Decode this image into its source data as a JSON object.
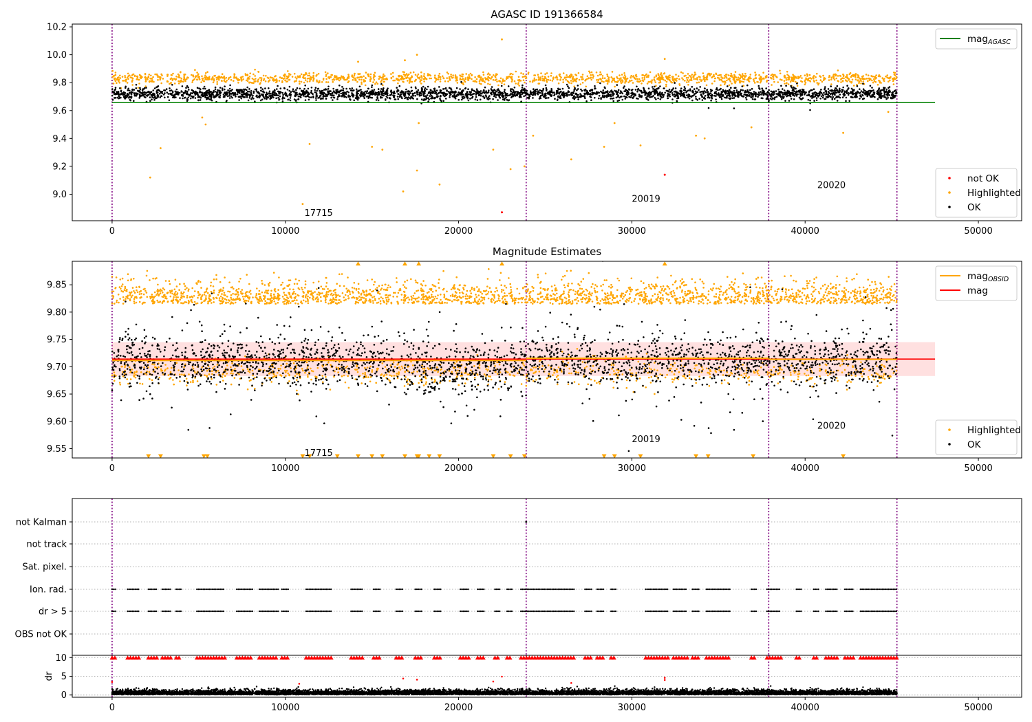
{
  "chart_data": [
    {
      "type": "scatter",
      "title": "AGASC ID 191366584",
      "xlabel": "",
      "ylabel": "",
      "xlim": [
        -2300,
        52500
      ],
      "ylim": [
        8.81,
        10.22
      ],
      "x_ticks": [
        0,
        10000,
        20000,
        30000,
        40000,
        50000
      ],
      "y_ticks": [
        9.0,
        9.2,
        9.4,
        9.6,
        9.8,
        10.0,
        10.2
      ],
      "y_tick_labels": [
        "9.0",
        "9.2",
        "9.4",
        "9.6",
        "9.8",
        "10.0",
        "10.2"
      ],
      "grid": false,
      "obsid_boundaries": [
        0,
        23900,
        37900,
        45300
      ],
      "annotations": [
        {
          "text": "17715",
          "x": 11100,
          "y": 8.87
        },
        {
          "text": "20019",
          "x": 30000,
          "y": 8.97
        },
        {
          "text": "20020",
          "x": 40700,
          "y": 9.07
        }
      ],
      "lines": [
        {
          "name": "mag",
          "subscript": "AGASC",
          "y": 9.657,
          "x_range": [
            0,
            47500
          ],
          "color": "#008000"
        }
      ],
      "legends": [
        {
          "position": "top-right",
          "entries": [
            {
              "label": "mag",
              "subscript": "AGASC",
              "kind": "line",
              "color": "#008000"
            }
          ]
        },
        {
          "position": "bottom-right",
          "entries": [
            {
              "label": "not OK",
              "kind": "marker",
              "color": "#ff0000"
            },
            {
              "label": "Highlighted",
              "kind": "marker",
              "color": "#ffa500"
            },
            {
              "label": "OK",
              "kind": "marker",
              "color": "#000000"
            }
          ]
        }
      ],
      "series": [
        {
          "name": "OK",
          "color": "#000000",
          "x_range": [
            0,
            45300
          ],
          "y_center": 9.72,
          "y_spread": 0.045,
          "approx_points": 45000
        },
        {
          "name": "Highlighted",
          "color": "#ffa500",
          "x_range": [
            0,
            45300
          ],
          "y_center": 9.83,
          "y_spread": 0.02,
          "outliers": [
            [
              2200,
              9.12
            ],
            [
              2800,
              9.33
            ],
            [
              5200,
              9.55
            ],
            [
              5400,
              9.5
            ],
            [
              11000,
              8.93
            ],
            [
              11400,
              9.36
            ],
            [
              14200,
              9.95
            ],
            [
              15000,
              9.34
            ],
            [
              15600,
              9.32
            ],
            [
              16800,
              9.02
            ],
            [
              16900,
              9.96
            ],
            [
              17600,
              10.0
            ],
            [
              17600,
              9.17
            ],
            [
              17700,
              9.51
            ],
            [
              18900,
              9.07
            ],
            [
              22000,
              9.32
            ],
            [
              22500,
              10.11
            ],
            [
              23000,
              9.18
            ],
            [
              23800,
              9.2
            ],
            [
              24300,
              9.42
            ],
            [
              26500,
              9.25
            ],
            [
              28400,
              9.34
            ],
            [
              29000,
              9.51
            ],
            [
              30500,
              9.35
            ],
            [
              31900,
              9.97
            ],
            [
              33700,
              9.42
            ],
            [
              34200,
              9.4
            ],
            [
              36900,
              9.48
            ],
            [
              42200,
              9.44
            ],
            [
              44800,
              9.59
            ]
          ]
        },
        {
          "name": "not OK",
          "color": "#ff0000",
          "points": [
            [
              22500,
              8.87
            ],
            [
              31900,
              9.14
            ]
          ]
        }
      ]
    },
    {
      "type": "scatter",
      "title": "Magnitude Estimates",
      "xlabel": "",
      "ylabel": "",
      "xlim": [
        -2300,
        52500
      ],
      "ylim": [
        9.533,
        9.893
      ],
      "x_ticks": [
        0,
        10000,
        20000,
        30000,
        40000,
        50000
      ],
      "y_ticks": [
        9.55,
        9.6,
        9.65,
        9.7,
        9.75,
        9.8,
        9.85
      ],
      "y_tick_labels": [
        "9.55",
        "9.60",
        "9.65",
        "9.70",
        "9.75",
        "9.80",
        "9.85"
      ],
      "grid": false,
      "obsid_boundaries": [
        0,
        23900,
        37900,
        45300
      ],
      "annotations": [
        {
          "text": "17715",
          "x": 11100,
          "y": 9.543
        },
        {
          "text": "20019",
          "x": 30000,
          "y": 9.568
        },
        {
          "text": "20020",
          "x": 40700,
          "y": 9.593
        }
      ],
      "lines": [
        {
          "name": "mag",
          "y": 9.714,
          "x_range": [
            0,
            47500
          ],
          "color": "#ff0000",
          "band": [
            9.683,
            9.745
          ]
        },
        {
          "name": "mag",
          "subscript": "OBSID",
          "color": "#ffa500",
          "segments": [
            [
              0,
              23900,
              9.714
            ],
            [
              23900,
              37900,
              9.718
            ],
            [
              37900,
              45300,
              9.716
            ]
          ]
        }
      ],
      "legends": [
        {
          "position": "top-right",
          "entries": [
            {
              "label": "mag",
              "subscript": "OBSID",
              "kind": "line",
              "color": "#ffa500"
            },
            {
              "label": "mag",
              "kind": "line",
              "color": "#ff0000"
            }
          ]
        },
        {
          "position": "bottom-right",
          "entries": [
            {
              "label": "Highlighted",
              "kind": "marker",
              "color": "#ffa500"
            },
            {
              "label": "OK",
              "kind": "marker",
              "color": "#000000"
            }
          ]
        }
      ],
      "series": [
        {
          "name": "OK",
          "color": "#000000",
          "x_range": [
            0,
            45300
          ],
          "y_center": 9.712,
          "y_spread": 0.055,
          "approx_points": 45000
        },
        {
          "name": "Highlighted",
          "color": "#ffa500",
          "x_range": [
            0,
            45300
          ],
          "y_center": 9.825,
          "y_spread": 0.025
        },
        {
          "name": "Highlighted (clipped below)",
          "color": "#ffa500",
          "marker": "triangle-down",
          "y": 9.536,
          "x": [
            2100,
            2800,
            5300,
            5500,
            11000,
            11400,
            13000,
            14200,
            15000,
            15600,
            16900,
            17600,
            17700,
            18300,
            18900,
            22000,
            23000,
            23800,
            28400,
            29000,
            30500,
            33700,
            34400,
            37000,
            42200
          ]
        },
        {
          "name": "Highlighted (clipped above)",
          "color": "#ffa500",
          "marker": "triangle-up",
          "y": 9.889,
          "x": [
            14200,
            16900,
            17700,
            22500,
            31900
          ]
        }
      ]
    },
    {
      "type": "scatter",
      "title": "",
      "xlabel": "",
      "ylabel": "",
      "xlim": [
        -2300,
        52500
      ],
      "categories": [
        "not Kalman",
        "not track",
        "Sat. pixel.",
        "Ion. rad.",
        "dr > 5",
        "OBS not OK"
      ],
      "x_ticks": [
        0,
        10000,
        20000,
        30000,
        40000,
        50000
      ],
      "grid": "horizontal dotted",
      "obsid_boundaries": [
        0,
        23900,
        37900,
        45300
      ],
      "flag_segments": [
        [
          0,
          200
        ],
        [
          900,
          1600
        ],
        [
          2100,
          2600
        ],
        [
          2900,
          3400
        ],
        [
          3700,
          4000
        ],
        [
          4900,
          6500
        ],
        [
          7200,
          8100
        ],
        [
          8500,
          9600
        ],
        [
          9800,
          10200
        ],
        [
          11200,
          12700
        ],
        [
          13800,
          14500
        ],
        [
          15100,
          15500
        ],
        [
          16400,
          16800
        ],
        [
          17500,
          17900
        ],
        [
          18600,
          19000
        ],
        [
          20100,
          20600
        ],
        [
          21100,
          21500
        ],
        [
          22100,
          22400
        ],
        [
          22800,
          23100
        ],
        [
          23600,
          26700
        ],
        [
          27300,
          27700
        ],
        [
          28000,
          28400
        ],
        [
          28800,
          29100
        ],
        [
          30800,
          32100
        ],
        [
          32400,
          33200
        ],
        [
          33500,
          33900
        ],
        [
          34300,
          35700
        ],
        [
          36900,
          37200
        ],
        [
          37800,
          38600
        ],
        [
          39500,
          39800
        ],
        [
          40500,
          40800
        ],
        [
          41200,
          41900
        ],
        [
          42300,
          42800
        ],
        [
          43200,
          45300
        ]
      ],
      "series": [
        {
          "name": "Ion. rad.",
          "color": "#000000",
          "uses": "flag_segments"
        },
        {
          "name": "dr > 5",
          "color": "#000000",
          "uses": "flag_segments"
        }
      ]
    },
    {
      "type": "scatter",
      "title": "",
      "xlabel": "",
      "ylabel": "dr",
      "xlim": [
        -2300,
        52500
      ],
      "ylim": [
        -0.6,
        10.6
      ],
      "y_ticks": [
        0,
        5,
        10
      ],
      "y_tick_labels": [
        "0",
        "5",
        "10"
      ],
      "x_ticks": [
        0,
        10000,
        20000,
        30000,
        40000,
        50000
      ],
      "x_tick_labels": [
        "0",
        "10000",
        "20000",
        "30000",
        "40000",
        "50000"
      ],
      "grid": "horizontal dotted",
      "obsid_boundaries": [
        0,
        23900,
        37900,
        45300
      ],
      "series": [
        {
          "name": "dr",
          "color": "#000000",
          "x_range": [
            0,
            45300
          ],
          "y_center": 0.6,
          "y_spread": 0.6,
          "approx_points": 45000
        },
        {
          "name": "dr clipped",
          "color": "#ff0000",
          "marker": "triangle-up",
          "y": 10,
          "uses": "flag_segments"
        },
        {
          "name": "dr outliers",
          "color": "#ff0000",
          "points": [
            [
              0,
              3.5
            ],
            [
              16800,
              4.4
            ],
            [
              17600,
              4.1
            ],
            [
              22000,
              3.6
            ],
            [
              22500,
              4.9
            ],
            [
              26500,
              3.2
            ],
            [
              31900,
              4.6
            ],
            [
              31900,
              4.0
            ],
            [
              10800,
              3.0
            ]
          ]
        }
      ]
    }
  ]
}
